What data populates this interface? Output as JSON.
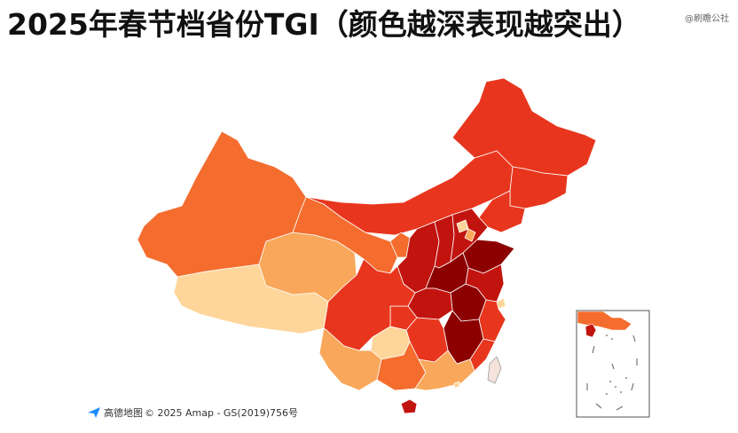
{
  "header": {
    "title": "2025年春节档省份TGI（颜色越深表现越突出）",
    "watermark": "@刷瞻公社"
  },
  "legend_colors": {
    "lightest": "#fed59a",
    "light": "#f9a75a",
    "medium": "#f46d2e",
    "medium_dark": "#e8361e",
    "dark": "#c2140f",
    "darkest": "#8c0000"
  },
  "map": {
    "logo_icon": "amap-arrow-icon",
    "logo_text": "高德地图",
    "copyright": "© 2025 Amap - GS(2019)756号"
  }
}
